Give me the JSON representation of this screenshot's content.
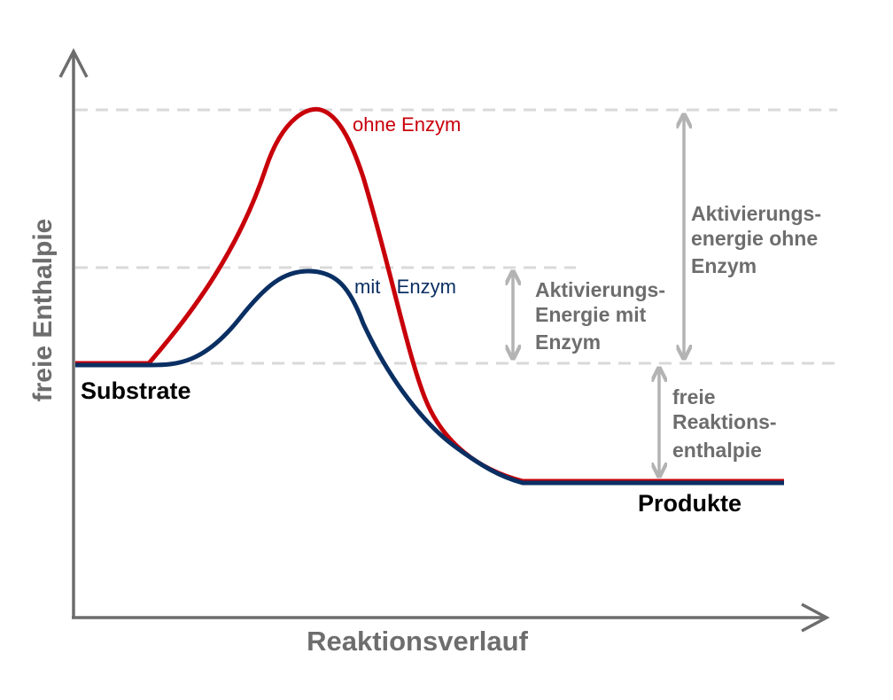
{
  "axes": {
    "y_label": "freie Enthalpie",
    "x_label": "Reaktionsverlauf"
  },
  "curves": {
    "without_enzyme": {
      "label": "ohne Enzym",
      "color": "#c8000a"
    },
    "with_enzyme": {
      "label": "mit   Enzym",
      "color": "#0a2f63"
    }
  },
  "states": {
    "substrates": "Substrate",
    "products": "Produkte"
  },
  "annotations": {
    "activation_without": [
      "Aktivierungs-",
      "energie ohne",
      "Enzym"
    ],
    "activation_with": [
      "Aktivierungs-",
      "Energie mit",
      "Enzym"
    ],
    "free_reaction_enthalpy": [
      "freie",
      "Reaktions-",
      "enthalpie"
    ]
  },
  "colors": {
    "axis": "#6d6d6d",
    "guide": "#d9d9d9",
    "arrow": "#b3b3b3",
    "annotation_text": "#6d6d6d",
    "state_text": "#000000"
  }
}
